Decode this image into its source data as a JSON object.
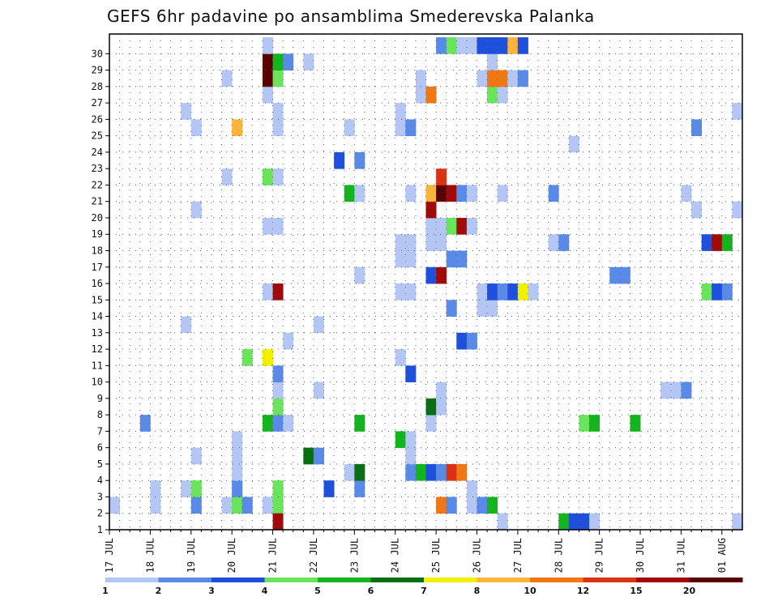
{
  "chart_data": {
    "type": "heatmap",
    "title": "GEFS 6hr padavine po ansamblima Smederevska Palanka",
    "y_categories": [
      "1",
      "2",
      "3",
      "4",
      "5",
      "6",
      "7",
      "8",
      "9",
      "10",
      "11",
      "12",
      "13",
      "14",
      "15",
      "16",
      "17",
      "18",
      "19",
      "20",
      "21",
      "22",
      "23",
      "24",
      "25",
      "26",
      "27",
      "28",
      "29",
      "30"
    ],
    "x_tick_labels": [
      "17 JUL",
      "18 JUL",
      "19 JUL",
      "20 JUL",
      "21 JUL",
      "22 JUL",
      "23 JUL",
      "24 JUL",
      "25 JUL",
      "26 JUL",
      "27 JUL",
      "28 JUL",
      "29 JUL",
      "30 JUL",
      "31 JUL",
      "01 AUG"
    ],
    "x_range_steps": [
      0,
      62
    ],
    "legend": {
      "labels": [
        "1",
        "2",
        "3",
        "4",
        "5",
        "6",
        "7",
        "8",
        "10",
        "12",
        "15",
        "20"
      ],
      "colors": [
        "#b4c6f4",
        "#5a8ae8",
        "#1e50dc",
        "#6ae45a",
        "#14b41e",
        "#0a6e14",
        "#f0f000",
        "#fab43c",
        "#f07814",
        "#dc3214",
        "#a00a0a",
        "#5a0000"
      ]
    },
    "cells": [
      {
        "step": 0,
        "ens": 1,
        "value": 1
      },
      {
        "step": 4,
        "ens": 1,
        "value": 1
      },
      {
        "step": 4,
        "ens": 2,
        "value": 1
      },
      {
        "step": 8,
        "ens": 1,
        "value": 2
      },
      {
        "step": 8,
        "ens": 2,
        "value": 4
      },
      {
        "step": 7,
        "ens": 2,
        "value": 1
      },
      {
        "step": 11,
        "ens": 1,
        "value": 1
      },
      {
        "step": 12,
        "ens": 1,
        "value": 4
      },
      {
        "step": 13,
        "ens": 1,
        "value": 2
      },
      {
        "step": 12,
        "ens": 2,
        "value": 2
      },
      {
        "step": 15,
        "ens": 1,
        "value": 1
      },
      {
        "step": 16,
        "ens": 1,
        "value": 4
      },
      {
        "step": 16,
        "ens": 2,
        "value": 4
      },
      {
        "step": 16,
        "ens": 0,
        "value": 15
      },
      {
        "step": 21,
        "ens": 2,
        "value": 3
      },
      {
        "step": 24,
        "ens": 2,
        "value": 2
      },
      {
        "step": 23,
        "ens": 3,
        "value": 1
      },
      {
        "step": 24,
        "ens": 3,
        "value": 6
      },
      {
        "step": 29,
        "ens": 3,
        "value": 2
      },
      {
        "step": 30,
        "ens": 3,
        "value": 5
      },
      {
        "step": 31,
        "ens": 3,
        "value": 3
      },
      {
        "step": 32,
        "ens": 3,
        "value": 2
      },
      {
        "step": 33,
        "ens": 3,
        "value": 12
      },
      {
        "step": 34,
        "ens": 3,
        "value": 10
      },
      {
        "step": 35,
        "ens": 2,
        "value": 1
      },
      {
        "step": 35,
        "ens": 1,
        "value": 1
      },
      {
        "step": 32,
        "ens": 1,
        "value": 10
      },
      {
        "step": 33,
        "ens": 1,
        "value": 2
      },
      {
        "step": 36,
        "ens": 1,
        "value": 2
      },
      {
        "step": 37,
        "ens": 1,
        "value": 5
      },
      {
        "step": 38,
        "ens": 0,
        "value": 1
      },
      {
        "step": 44,
        "ens": 0,
        "value": 5
      },
      {
        "step": 45,
        "ens": 0,
        "value": 3
      },
      {
        "step": 46,
        "ens": 0,
        "value": 3
      },
      {
        "step": 47,
        "ens": 0,
        "value": 1
      },
      {
        "step": 61,
        "ens": 0,
        "value": 1
      },
      {
        "step": 8,
        "ens": 4,
        "value": 1
      },
      {
        "step": 12,
        "ens": 4,
        "value": 1
      },
      {
        "step": 12,
        "ens": 5,
        "value": 1
      },
      {
        "step": 12,
        "ens": 3,
        "value": 1
      },
      {
        "step": 19,
        "ens": 4,
        "value": 6
      },
      {
        "step": 20,
        "ens": 4,
        "value": 2
      },
      {
        "step": 28,
        "ens": 5,
        "value": 5
      },
      {
        "step": 29,
        "ens": 5,
        "value": 1
      },
      {
        "step": 29,
        "ens": 4,
        "value": 1
      },
      {
        "step": 3,
        "ens": 6,
        "value": 2
      },
      {
        "step": 15,
        "ens": 6,
        "value": 5
      },
      {
        "step": 16,
        "ens": 6,
        "value": 2
      },
      {
        "step": 17,
        "ens": 6,
        "value": 1
      },
      {
        "step": 24,
        "ens": 6,
        "value": 5
      },
      {
        "step": 31,
        "ens": 6,
        "value": 1
      },
      {
        "step": 46,
        "ens": 6,
        "value": 4
      },
      {
        "step": 47,
        "ens": 6,
        "value": 5
      },
      {
        "step": 51,
        "ens": 6,
        "value": 5
      },
      {
        "step": 16,
        "ens": 7,
        "value": 4
      },
      {
        "step": 31,
        "ens": 7,
        "value": 6
      },
      {
        "step": 32,
        "ens": 7,
        "value": 1
      },
      {
        "step": 16,
        "ens": 8,
        "value": 1
      },
      {
        "step": 20,
        "ens": 8,
        "value": 1
      },
      {
        "step": 32,
        "ens": 8,
        "value": 1
      },
      {
        "step": 54,
        "ens": 8,
        "value": 1
      },
      {
        "step": 55,
        "ens": 8,
        "value": 1
      },
      {
        "step": 56,
        "ens": 8,
        "value": 2
      },
      {
        "step": 16,
        "ens": 9,
        "value": 2
      },
      {
        "step": 29,
        "ens": 9,
        "value": 3
      },
      {
        "step": 13,
        "ens": 10,
        "value": 4
      },
      {
        "step": 15,
        "ens": 10,
        "value": 7
      },
      {
        "step": 28,
        "ens": 10,
        "value": 1
      },
      {
        "step": 17,
        "ens": 11,
        "value": 1
      },
      {
        "step": 34,
        "ens": 11,
        "value": 3
      },
      {
        "step": 35,
        "ens": 11,
        "value": 2
      },
      {
        "step": 7,
        "ens": 12,
        "value": 1
      },
      {
        "step": 20,
        "ens": 12,
        "value": 1
      },
      {
        "step": 33,
        "ens": 13,
        "value": 2
      },
      {
        "step": 36,
        "ens": 13,
        "value": 1
      },
      {
        "step": 37,
        "ens": 13,
        "value": 1
      },
      {
        "step": 15,
        "ens": 14,
        "value": 1
      },
      {
        "step": 16,
        "ens": 14,
        "value": 15
      },
      {
        "step": 28,
        "ens": 14,
        "value": 1
      },
      {
        "step": 29,
        "ens": 14,
        "value": 1
      },
      {
        "step": 36,
        "ens": 14,
        "value": 1
      },
      {
        "step": 37,
        "ens": 14,
        "value": 3
      },
      {
        "step": 38,
        "ens": 14,
        "value": 2
      },
      {
        "step": 39,
        "ens": 14,
        "value": 3
      },
      {
        "step": 40,
        "ens": 14,
        "value": 7
      },
      {
        "step": 41,
        "ens": 14,
        "value": 1
      },
      {
        "step": 58,
        "ens": 14,
        "value": 4
      },
      {
        "step": 59,
        "ens": 14,
        "value": 3
      },
      {
        "step": 60,
        "ens": 14,
        "value": 2
      },
      {
        "step": 24,
        "ens": 15,
        "value": 1
      },
      {
        "step": 31,
        "ens": 15,
        "value": 3
      },
      {
        "step": 32,
        "ens": 15,
        "value": 15
      },
      {
        "step": 49,
        "ens": 15,
        "value": 2
      },
      {
        "step": 50,
        "ens": 15,
        "value": 2
      },
      {
        "step": 28,
        "ens": 16,
        "value": 1
      },
      {
        "step": 29,
        "ens": 16,
        "value": 1
      },
      {
        "step": 33,
        "ens": 16,
        "value": 2
      },
      {
        "step": 34,
        "ens": 16,
        "value": 2
      },
      {
        "step": 28,
        "ens": 17,
        "value": 1
      },
      {
        "step": 29,
        "ens": 17,
        "value": 1
      },
      {
        "step": 31,
        "ens": 17,
        "value": 1
      },
      {
        "step": 32,
        "ens": 17,
        "value": 1
      },
      {
        "step": 43,
        "ens": 17,
        "value": 1
      },
      {
        "step": 44,
        "ens": 17,
        "value": 2
      },
      {
        "step": 58,
        "ens": 17,
        "value": 3
      },
      {
        "step": 59,
        "ens": 17,
        "value": 15
      },
      {
        "step": 60,
        "ens": 17,
        "value": 5
      },
      {
        "step": 15,
        "ens": 18,
        "value": 1
      },
      {
        "step": 16,
        "ens": 18,
        "value": 1
      },
      {
        "step": 31,
        "ens": 18,
        "value": 1
      },
      {
        "step": 32,
        "ens": 18,
        "value": 1
      },
      {
        "step": 33,
        "ens": 18,
        "value": 4
      },
      {
        "step": 34,
        "ens": 18,
        "value": 15
      },
      {
        "step": 35,
        "ens": 18,
        "value": 1
      },
      {
        "step": 8,
        "ens": 19,
        "value": 1
      },
      {
        "step": 31,
        "ens": 19,
        "value": 15
      },
      {
        "step": 57,
        "ens": 19,
        "value": 1
      },
      {
        "step": 61,
        "ens": 19,
        "value": 1
      },
      {
        "step": 23,
        "ens": 20,
        "value": 5
      },
      {
        "step": 24,
        "ens": 20,
        "value": 1
      },
      {
        "step": 29,
        "ens": 20,
        "value": 1
      },
      {
        "step": 31,
        "ens": 20,
        "value": 8
      },
      {
        "step": 32,
        "ens": 20,
        "value": 20
      },
      {
        "step": 33,
        "ens": 20,
        "value": 15
      },
      {
        "step": 34,
        "ens": 20,
        "value": 2
      },
      {
        "step": 35,
        "ens": 20,
        "value": 1
      },
      {
        "step": 38,
        "ens": 20,
        "value": 1
      },
      {
        "step": 43,
        "ens": 20,
        "value": 2
      },
      {
        "step": 56,
        "ens": 20,
        "value": 1
      },
      {
        "step": 11,
        "ens": 21,
        "value": 1
      },
      {
        "step": 15,
        "ens": 21,
        "value": 4
      },
      {
        "step": 16,
        "ens": 21,
        "value": 1
      },
      {
        "step": 32,
        "ens": 21,
        "value": 12
      },
      {
        "step": 22,
        "ens": 22,
        "value": 3
      },
      {
        "step": 24,
        "ens": 22,
        "value": 2
      },
      {
        "step": 45,
        "ens": 23,
        "value": 1
      },
      {
        "step": 8,
        "ens": 24,
        "value": 1
      },
      {
        "step": 12,
        "ens": 24,
        "value": 8
      },
      {
        "step": 16,
        "ens": 24,
        "value": 1
      },
      {
        "step": 23,
        "ens": 24,
        "value": 1
      },
      {
        "step": 28,
        "ens": 24,
        "value": 1
      },
      {
        "step": 29,
        "ens": 24,
        "value": 2
      },
      {
        "step": 57,
        "ens": 24,
        "value": 2
      },
      {
        "step": 7,
        "ens": 25,
        "value": 1
      },
      {
        "step": 16,
        "ens": 25,
        "value": 1
      },
      {
        "step": 28,
        "ens": 25,
        "value": 1
      },
      {
        "step": 61,
        "ens": 25,
        "value": 1
      },
      {
        "step": 15,
        "ens": 26,
        "value": 1
      },
      {
        "step": 30,
        "ens": 26,
        "value": 1
      },
      {
        "step": 31,
        "ens": 26,
        "value": 10
      },
      {
        "step": 37,
        "ens": 26,
        "value": 4
      },
      {
        "step": 38,
        "ens": 26,
        "value": 1
      },
      {
        "step": 11,
        "ens": 27,
        "value": 1
      },
      {
        "step": 15,
        "ens": 27,
        "value": 20
      },
      {
        "step": 16,
        "ens": 27,
        "value": 4
      },
      {
        "step": 30,
        "ens": 27,
        "value": 1
      },
      {
        "step": 36,
        "ens": 27,
        "value": 1
      },
      {
        "step": 37,
        "ens": 27,
        "value": 10
      },
      {
        "step": 38,
        "ens": 27,
        "value": 10
      },
      {
        "step": 39,
        "ens": 27,
        "value": 1
      },
      {
        "step": 40,
        "ens": 27,
        "value": 2
      },
      {
        "step": 15,
        "ens": 28,
        "value": 20
      },
      {
        "step": 16,
        "ens": 28,
        "value": 5
      },
      {
        "step": 17,
        "ens": 28,
        "value": 2
      },
      {
        "step": 19,
        "ens": 28,
        "value": 1
      },
      {
        "step": 37,
        "ens": 28,
        "value": 1
      },
      {
        "step": 15,
        "ens": 29,
        "value": 1
      },
      {
        "step": 32,
        "ens": 29,
        "value": 2
      },
      {
        "step": 33,
        "ens": 29,
        "value": 4
      },
      {
        "step": 34,
        "ens": 29,
        "value": 1
      },
      {
        "step": 35,
        "ens": 29,
        "value": 1
      },
      {
        "step": 36,
        "ens": 29,
        "value": 3
      },
      {
        "step": 37,
        "ens": 29,
        "value": 3
      },
      {
        "step": 38,
        "ens": 29,
        "value": 3
      },
      {
        "step": 39,
        "ens": 29,
        "value": 8
      },
      {
        "step": 40,
        "ens": 29,
        "value": 3
      }
    ]
  }
}
